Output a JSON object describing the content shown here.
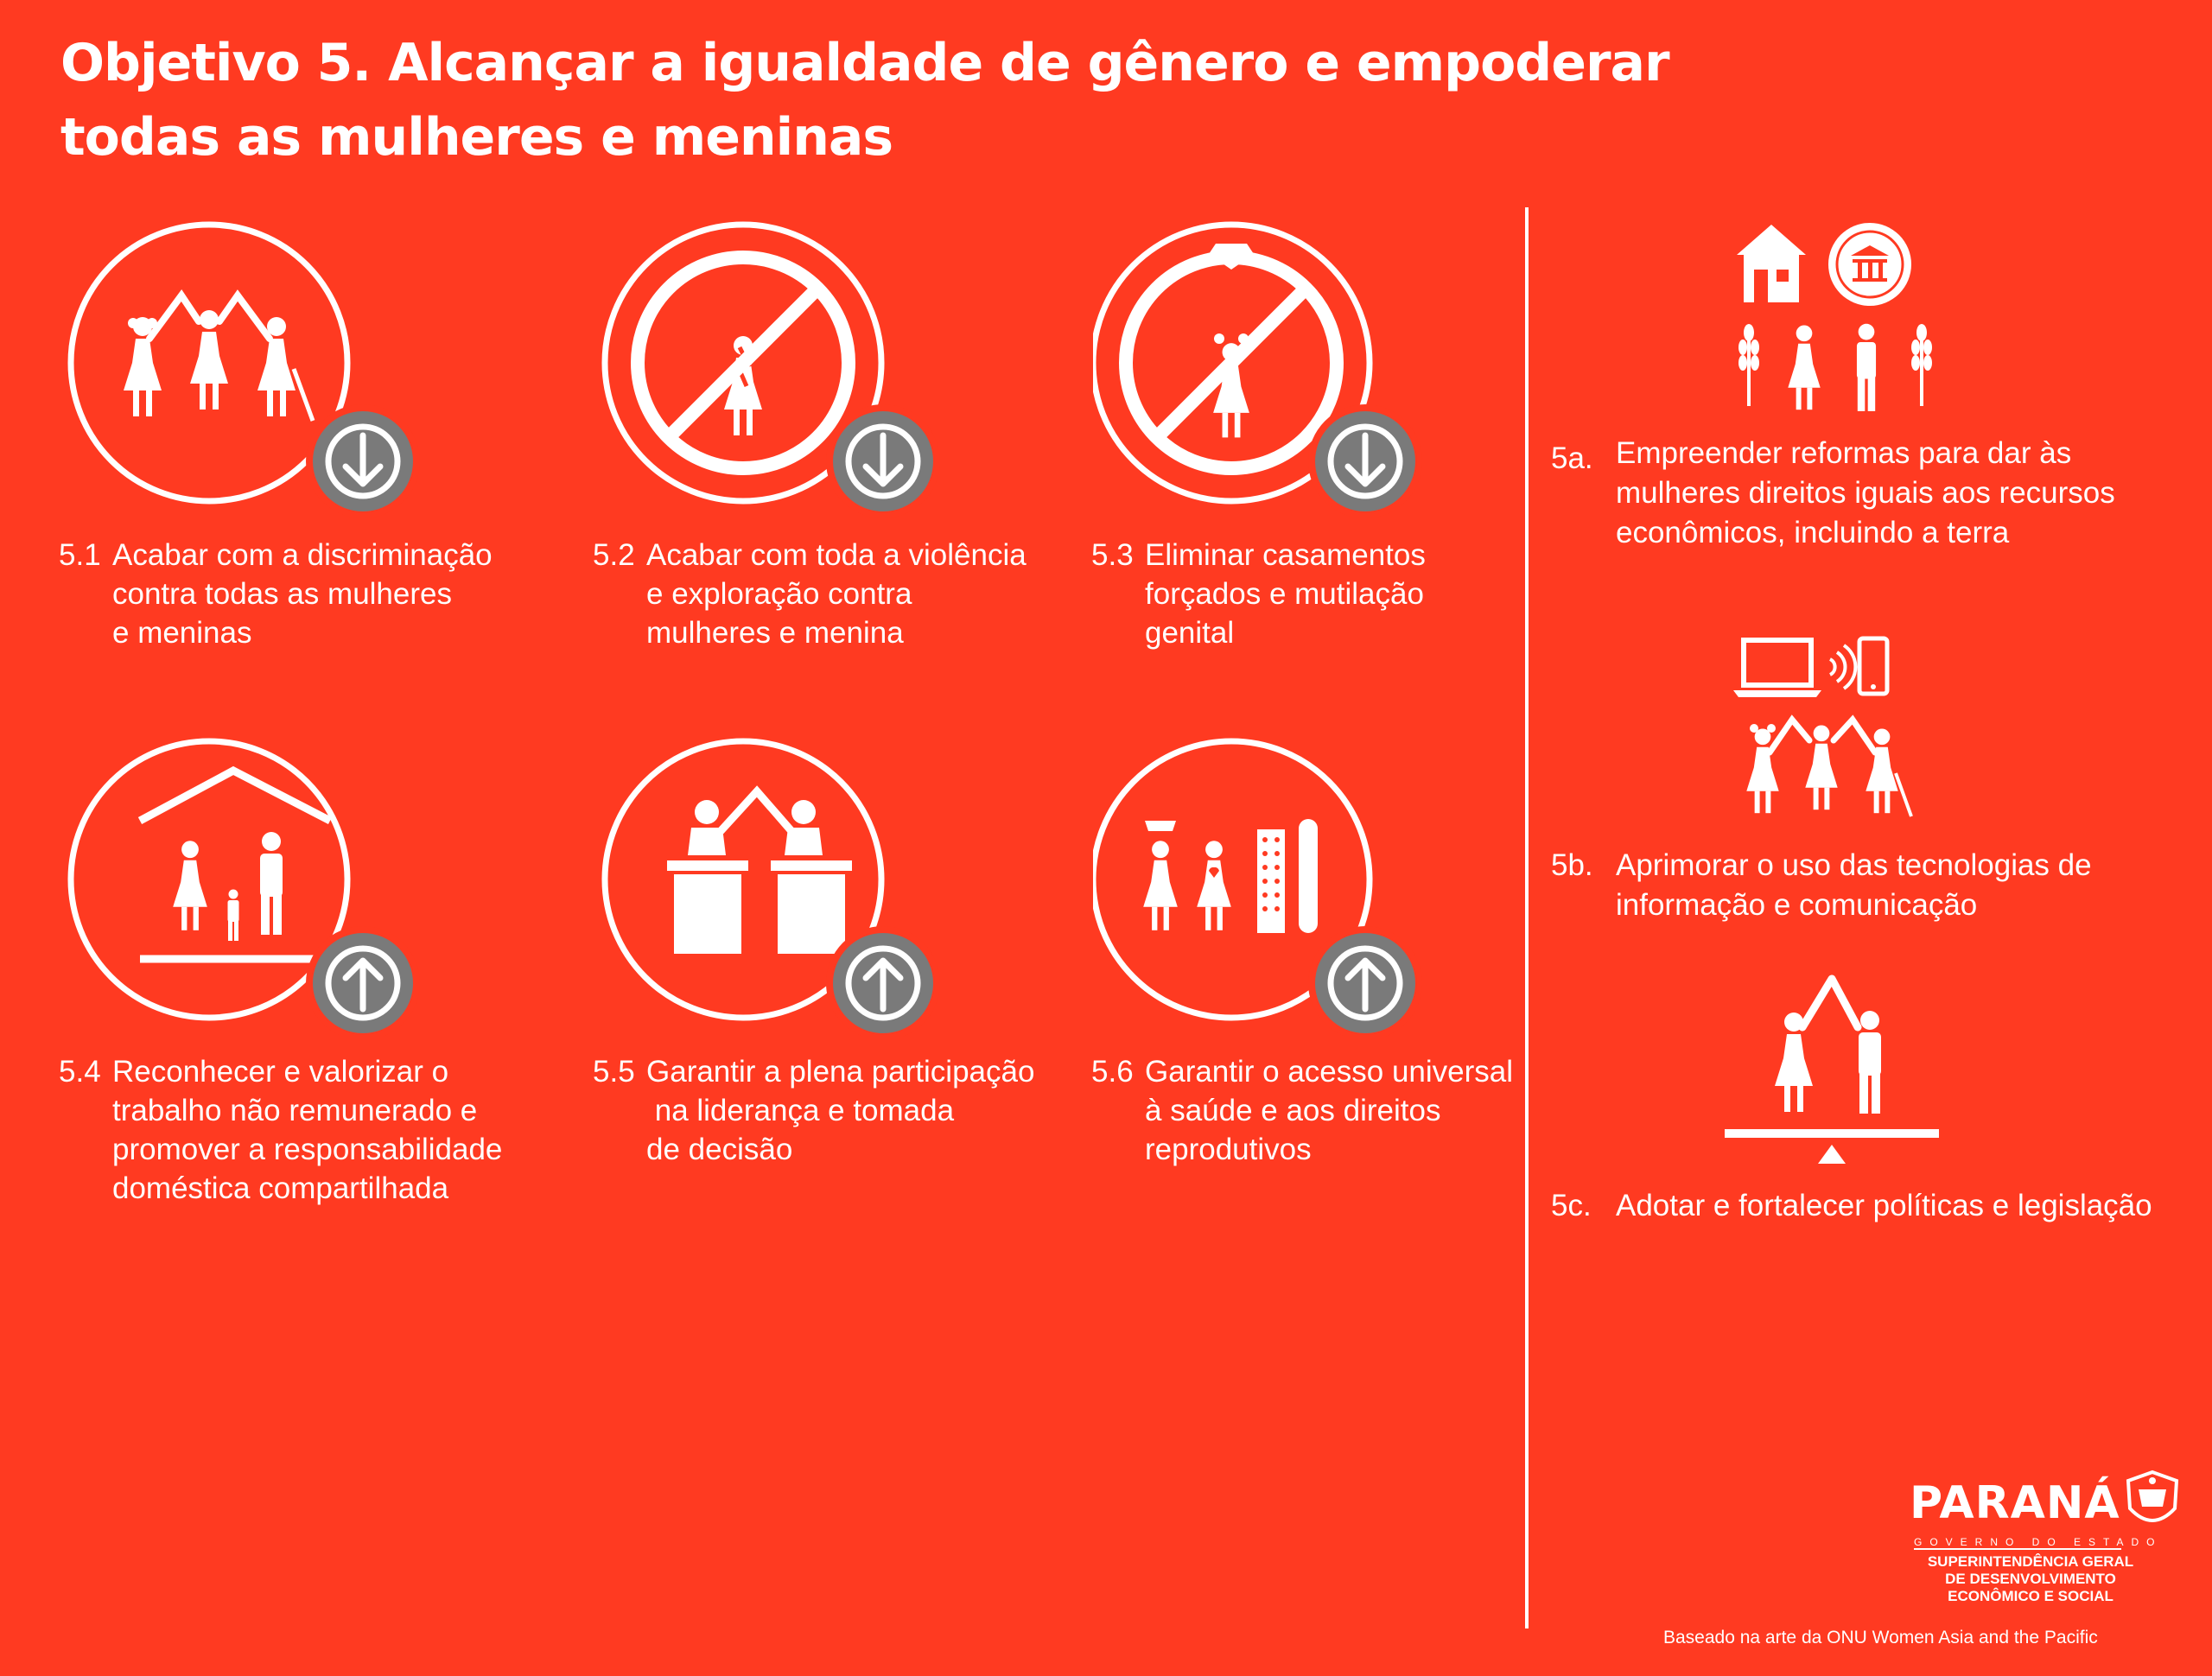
{
  "title": {
    "line1": "Objetivo 5. Alcançar a igualdade de gênero e empoderar",
    "line2": "todas as mulheres e meninas"
  },
  "colors": {
    "background": "#ff3a21",
    "icon": "#ffffff",
    "arrow_badge": "#7a7a7a"
  },
  "targets": [
    {
      "number": "5.1",
      "lines": [
        "Acabar com a discriminação",
        "contra todas as mulheres",
        "e meninas"
      ],
      "icon": "three-women-holding-hands-icon",
      "arrow": "down"
    },
    {
      "number": "5.2",
      "lines": [
        "Acabar com toda a violência",
        "e exploração contra",
        "mulheres e menina"
      ],
      "icon": "no-violence-against-women-icon",
      "arrow": "down"
    },
    {
      "number": "5.3",
      "lines": [
        "Eliminar casamentos",
        "forçados e mutilação",
        "genital"
      ],
      "icon": "no-child-marriage-icon",
      "arrow": "down"
    },
    {
      "number": "5.4",
      "lines": [
        "Reconhecer e valorizar o",
        "trabalho não remunerado e",
        "promover a responsabilidade",
        "doméstica compartilhada"
      ],
      "icon": "family-under-roof-icon",
      "arrow": "up"
    },
    {
      "number": "5.5",
      "lines": [
        "Garantir a plena participação",
        " na liderança e tomada",
        "de decisão"
      ],
      "icon": "two-leaders-at-podiums-icon",
      "arrow": "up"
    },
    {
      "number": "5.6",
      "lines": [
        "Garantir o acesso universal",
        "à saúde e aos direitos",
        "reprodutivos"
      ],
      "icon": "reproductive-health-icon",
      "arrow": "up"
    }
  ],
  "means": [
    {
      "number": "5a.",
      "lines": [
        "Empreender reformas para dar às",
        "mulheres direitos iguais aos recursos",
        "econômicos, incluindo a terra"
      ],
      "icon": "house-bank-crops-people-icon"
    },
    {
      "number": "5b.",
      "lines": [
        "Aprimorar o uso das tecnologias de",
        "informação e comunicação"
      ],
      "icon": "laptop-phone-women-icon"
    },
    {
      "number": "5c.",
      "lines": [
        "Adotar e fortalecer políticas e legislação"
      ],
      "icon": "balanced-scale-couple-icon"
    }
  ],
  "logo": {
    "word": "PARANÁ",
    "sub": "GOVERNO DO ESTADO",
    "dept_lines": [
      "SUPERINTENDÊNCIA GERAL",
      "DE DESENVOLVIMENTO",
      "ECONÔMICO E SOCIAL"
    ]
  },
  "credit": "Baseado na arte da ONU Women Asia and the Pacific"
}
